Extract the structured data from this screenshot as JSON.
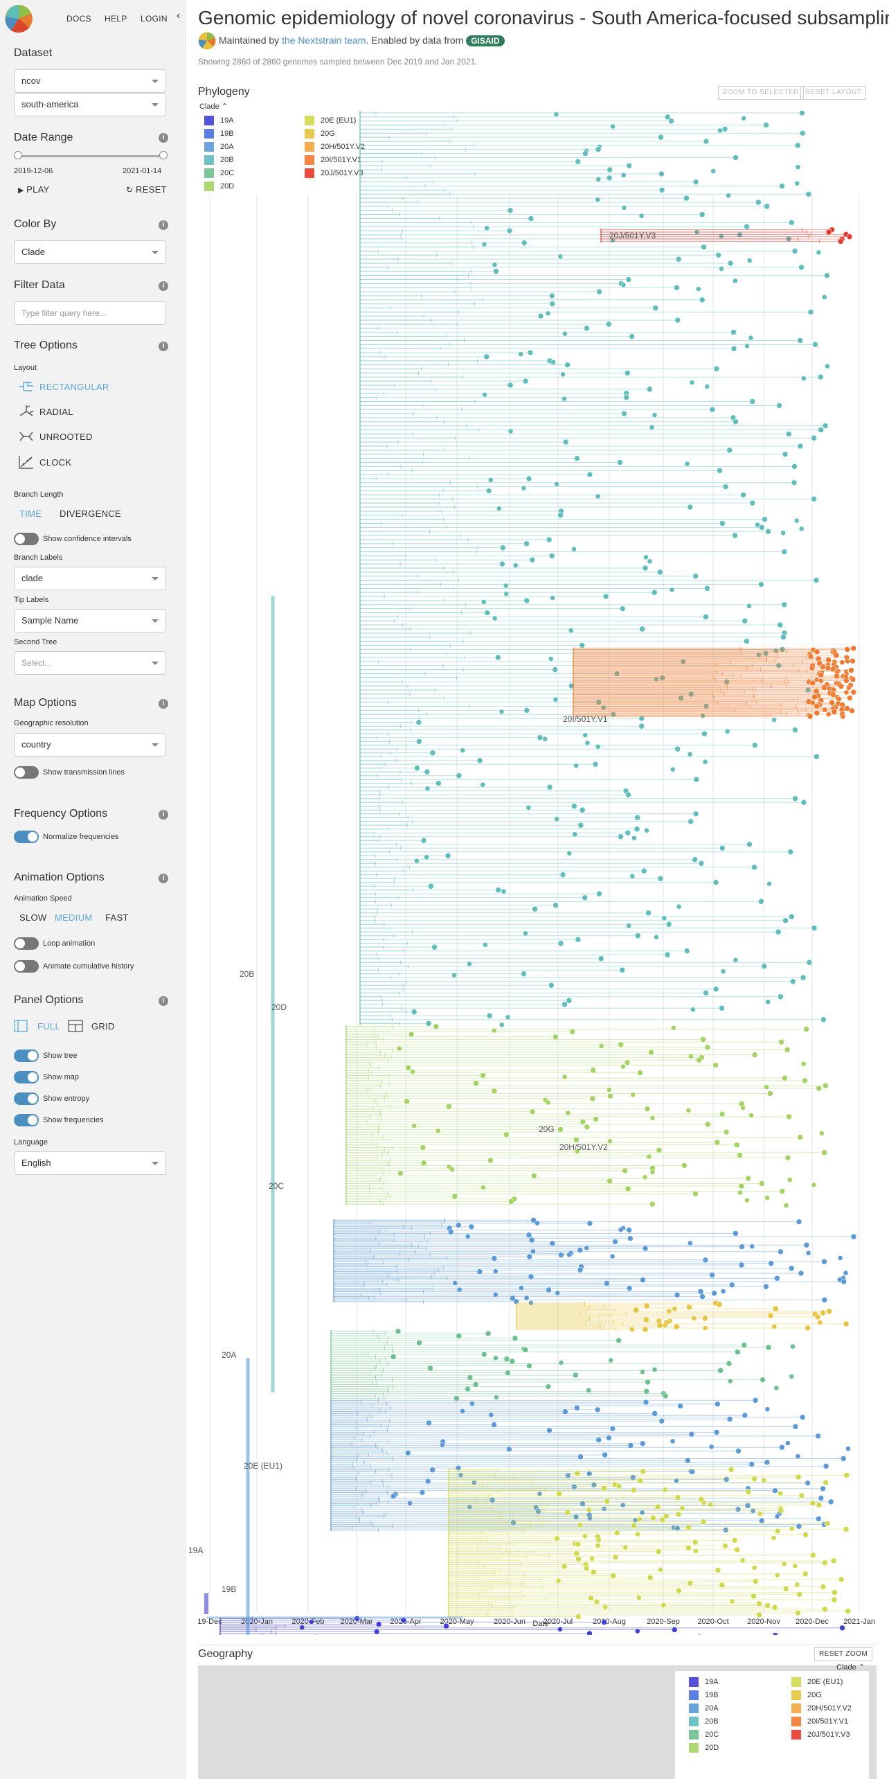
{
  "nav": {
    "docs": "DOCS",
    "help": "HELP",
    "login": "LOGIN"
  },
  "sidebar": {
    "dataset": {
      "title": "Dataset",
      "value1": "ncov",
      "value2": "south-america"
    },
    "date_range": {
      "title": "Date Range",
      "start": "2019-12-06",
      "end": "2021-01-14",
      "play": "PLAY",
      "reset": "RESET"
    },
    "color_by": {
      "title": "Color By",
      "value": "Clade"
    },
    "filter": {
      "title": "Filter Data",
      "placeholder": "Type filter query here..."
    },
    "tree_options": {
      "title": "Tree Options",
      "layout_label": "Layout",
      "layouts": [
        "RECTANGULAR",
        "RADIAL",
        "UNROOTED",
        "CLOCK"
      ],
      "branch_length_label": "Branch Length",
      "branch_time": "TIME",
      "branch_div": "DIVERGENCE",
      "confidence": "Show confidence intervals",
      "branch_labels_label": "Branch Labels",
      "branch_labels_value": "clade",
      "tip_labels_label": "Tip Labels",
      "tip_labels_value": "Sample Name",
      "second_tree_label": "Second Tree",
      "second_tree_placeholder": "Select..."
    },
    "map_options": {
      "title": "Map Options",
      "geo_label": "Geographic resolution",
      "geo_value": "country",
      "transmission": "Show transmission lines"
    },
    "frequency_options": {
      "title": "Frequency Options",
      "normalize": "Normalize frequencies"
    },
    "animation_options": {
      "title": "Animation Options",
      "speed_label": "Animation Speed",
      "slow": "SLOW",
      "medium": "MEDIUM",
      "fast": "FAST",
      "loop": "Loop animation",
      "cumulative": "Animate cumulative history"
    },
    "panel_options": {
      "title": "Panel Options",
      "full": "FULL",
      "grid": "GRID",
      "show_tree": "Show tree",
      "show_map": "Show map",
      "show_entropy": "Show entropy",
      "show_frequencies": "Show frequencies",
      "language_label": "Language",
      "language_value": "English"
    }
  },
  "header": {
    "title": "Genomic epidemiology of novel coronavirus - South America-focused subsampling",
    "maintained_prefix": "Maintained by ",
    "maintained_link": "the Nextstrain team",
    "maintained_suffix": ". Enabled by data from ",
    "gisaid": "GISAID",
    "showing": "Showing 2860 of 2860 genomes sampled between Dec 2019 and Jan 2021."
  },
  "phylogeny": {
    "title": "Phylogeny",
    "zoom_to_selected": "ZOOM TO SELECTED",
    "reset_layout": "RESET LAYOUT",
    "legend_title": "Clade",
    "clades": [
      {
        "name": "19A",
        "color": "#3f3fd9"
      },
      {
        "name": "19B",
        "color": "#4a6fe0"
      },
      {
        "name": "20A",
        "color": "#5a9ad8"
      },
      {
        "name": "20B",
        "color": "#5fbdbc"
      },
      {
        "name": "20C",
        "color": "#6cc08e"
      },
      {
        "name": "20D",
        "color": "#a3d462"
      },
      {
        "name": "20E (EU1)",
        "color": "#cfd94a"
      },
      {
        "name": "20G",
        "color": "#e6c43d"
      },
      {
        "name": "20H/501Y.V2",
        "color": "#f4a43a"
      },
      {
        "name": "20I/501Y.V1",
        "color": "#f27a2e"
      },
      {
        "name": "20J/501Y.V3",
        "color": "#e8392b"
      }
    ],
    "branch_labels": [
      "20J/501Y.V3",
      "20I/501Y.V1",
      "20B",
      "20D",
      "20G",
      "20H/501Y.V2",
      "20C",
      "20A",
      "20E (EU1)",
      "19A",
      "19B"
    ],
    "x_ticks": [
      "19-Dec",
      "2020-Jan",
      "2020-Feb",
      "2020-Mar",
      "2020-Apr",
      "2020-May",
      "2020-Jun",
      "2020-Jul",
      "2020-Aug",
      "2020-Sep",
      "2020-Oct",
      "2020-Nov",
      "2020-Dec",
      "2021-Jan"
    ],
    "x_label": "Date"
  },
  "geography": {
    "title": "Geography",
    "reset_zoom": "RESET ZOOM",
    "legend_title": "Clade"
  }
}
